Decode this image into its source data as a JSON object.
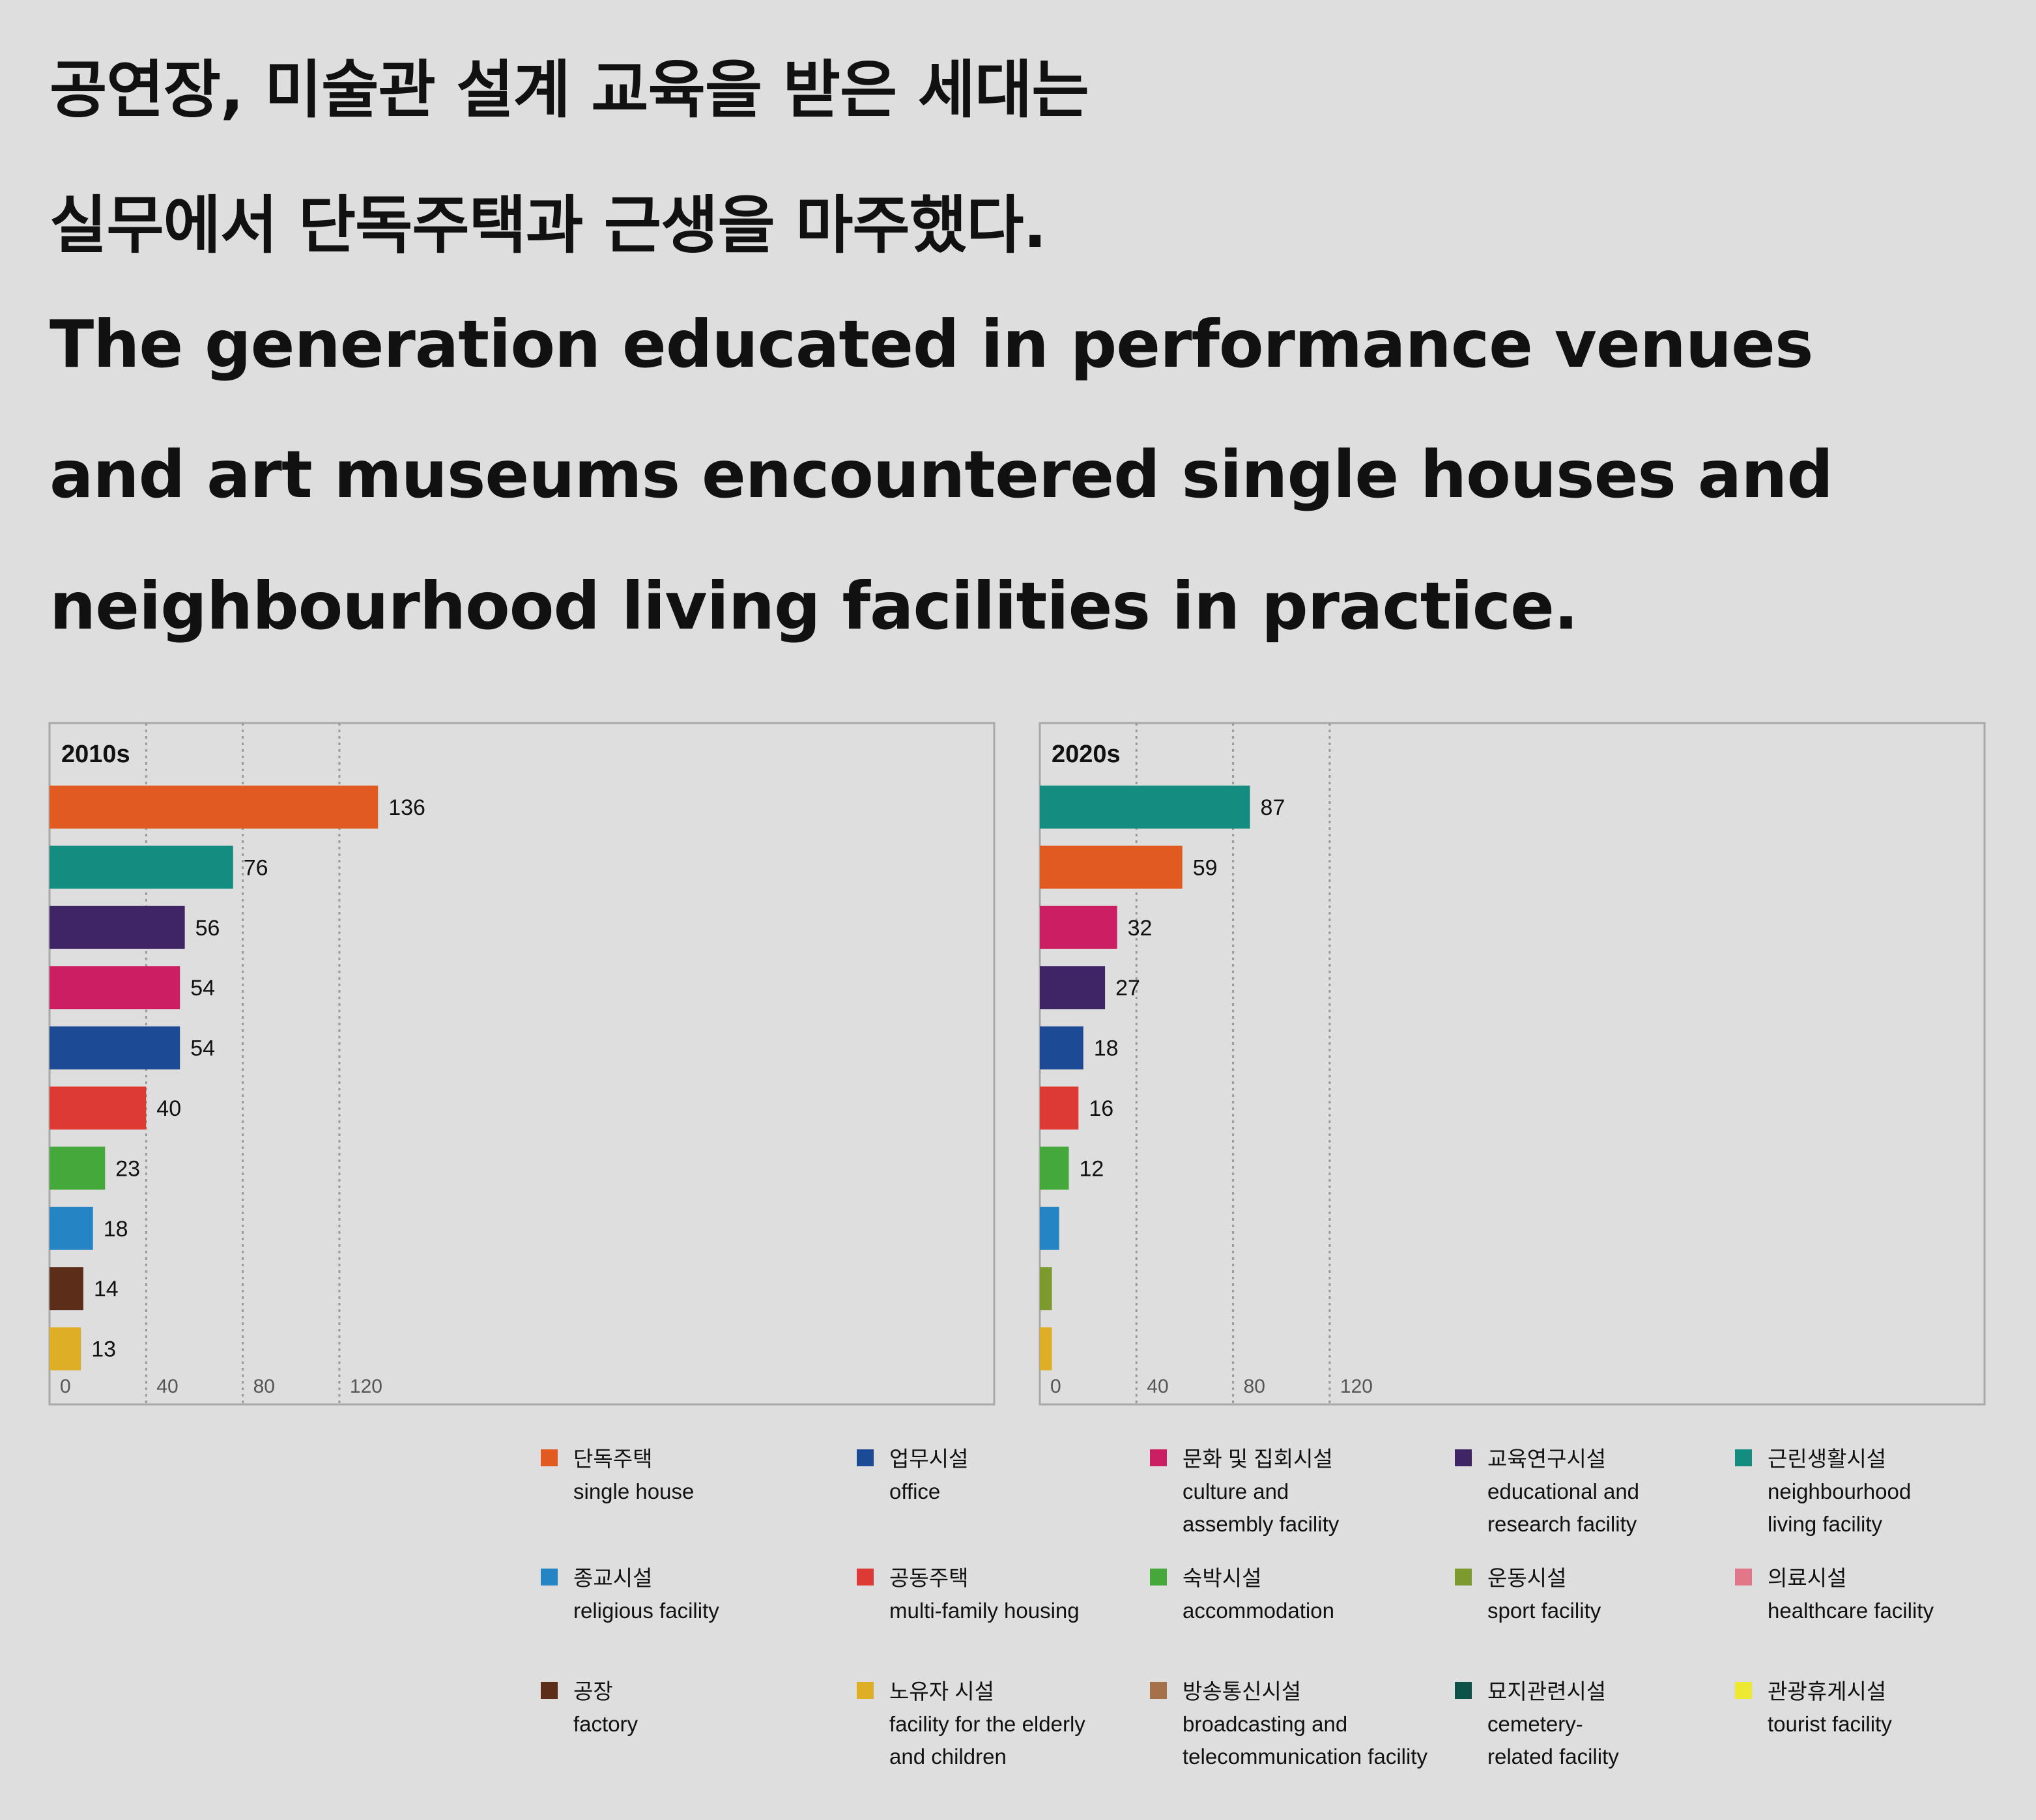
{
  "title": {
    "ko_line1": "공연장, 미술관 설계 교육을 받은 세대는",
    "ko_line2": "실무에서 단독주택과 근생을 마주했다.",
    "en_line1": "The generation educated in performance venues",
    "en_line2": "and art museums encountered single houses and",
    "en_line3": "neighbourhood living facilities in practice."
  },
  "chart_data": [
    {
      "type": "bar",
      "orientation": "horizontal",
      "panel_label": "2010s",
      "xlim": [
        0,
        160
      ],
      "xticks": [
        "0",
        "40",
        "80",
        "120"
      ],
      "grid": "vertical dotted",
      "bars": [
        {
          "category": "single house",
          "value": 136,
          "label": "136",
          "color": "#e05a22"
        },
        {
          "category": "neighbourhood living facility",
          "value": 76,
          "label": "76",
          "color": "#148c80"
        },
        {
          "category": "educational and research facility",
          "value": 56,
          "label": "56",
          "color": "#402566"
        },
        {
          "category": "culture and assembly facility",
          "value": 54,
          "label": "54",
          "color": "#cc1e62"
        },
        {
          "category": "office",
          "value": 54,
          "label": "54",
          "color": "#1c4a94"
        },
        {
          "category": "multi-family housing",
          "value": 40,
          "label": "40",
          "color": "#dd3a35"
        },
        {
          "category": "accommodation",
          "value": 23,
          "label": "23",
          "color": "#45a83b"
        },
        {
          "category": "religious facility",
          "value": 18,
          "label": "18",
          "color": "#2585c4"
        },
        {
          "category": "factory",
          "value": 14,
          "label": "14",
          "color": "#5c2d18"
        },
        {
          "category": "facility for the elderly and children",
          "value": 13,
          "label": "13",
          "color": "#deae26"
        }
      ]
    },
    {
      "type": "bar",
      "orientation": "horizontal",
      "panel_label": "2020s",
      "xlim": [
        0,
        156
      ],
      "xticks": [
        "0",
        "40",
        "80",
        "120"
      ],
      "grid": "vertical dotted",
      "bars": [
        {
          "category": "neighbourhood living facility",
          "value": 87,
          "label": "87",
          "color": "#148c80"
        },
        {
          "category": "single house",
          "value": 59,
          "label": "59",
          "color": "#e05a22"
        },
        {
          "category": "culture and assembly facility",
          "value": 32,
          "label": "32",
          "color": "#cc1e62"
        },
        {
          "category": "educational and research facility",
          "value": 27,
          "label": "27",
          "color": "#402566"
        },
        {
          "category": "office",
          "value": 18,
          "label": "18",
          "color": "#1c4a94"
        },
        {
          "category": "multi-family housing",
          "value": 16,
          "label": "16",
          "color": "#dd3a35"
        },
        {
          "category": "accommodation",
          "value": 12,
          "label": "12",
          "color": "#45a83b"
        },
        {
          "category": "religious facility",
          "value": 8,
          "label": "",
          "color": "#2585c4"
        },
        {
          "category": "sport facility",
          "value": 5,
          "label": "",
          "color": "#7c9a2e"
        },
        {
          "category": "facility for the elderly and children",
          "value": 5,
          "label": "",
          "color": "#deae26"
        }
      ]
    }
  ],
  "legend": [
    {
      "ko": "단독주택",
      "en": "single house",
      "color": "#e05a22"
    },
    {
      "ko": "업무시설",
      "en": "office",
      "color": "#1c4a94"
    },
    {
      "ko": "문화 및 집회시설",
      "en": "culture and\nassembly facility",
      "color": "#cc1e62"
    },
    {
      "ko": "교육연구시설",
      "en": "educational and\nresearch facility",
      "color": "#402566"
    },
    {
      "ko": "근린생활시설",
      "en": "neighbourhood\nliving facility",
      "color": "#148c80"
    },
    {
      "ko": "종교시설",
      "en": "religious facility",
      "color": "#2585c4"
    },
    {
      "ko": "공동주택",
      "en": "multi-family housing",
      "color": "#dd3a35"
    },
    {
      "ko": "숙박시설",
      "en": "accommodation",
      "color": "#45a83b"
    },
    {
      "ko": "운동시설",
      "en": "sport facility",
      "color": "#7c9a2e"
    },
    {
      "ko": "의료시설",
      "en": "healthcare facility",
      "color": "#e3778a"
    },
    {
      "ko": "공장",
      "en": "factory",
      "color": "#5c2d18"
    },
    {
      "ko": "노유자 시설",
      "en": "facility for the elderly\nand children",
      "color": "#deae26"
    },
    {
      "ko": "방송통신시설",
      "en": "broadcasting and\ntelecommunication facility",
      "color": "#a47148"
    },
    {
      "ko": "묘지관련시설",
      "en": "cemetery-\nrelated facility",
      "color": "#0d5248"
    },
    {
      "ko": "관광휴게시설",
      "en": "tourist facility",
      "color": "#ede832"
    }
  ]
}
